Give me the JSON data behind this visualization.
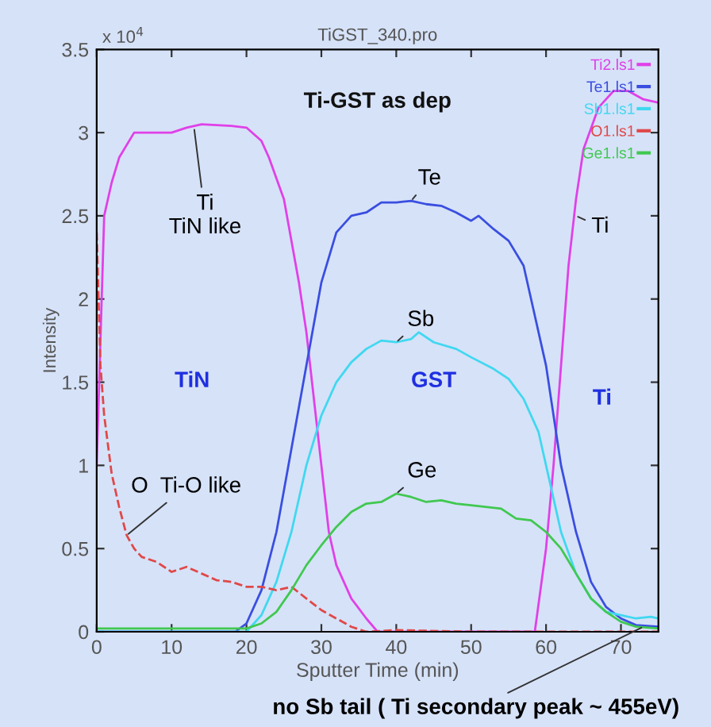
{
  "chart_data": {
    "type": "line",
    "title": "TiGST_340.pro",
    "subtitle": "Ti-GST as dep",
    "xlabel": "Sputter Time (min)",
    "ylabel": "Intensity",
    "annotations": [
      "x 10$^{4}$",
      {
        "text": "Ti\nTiN like",
        "x": 13,
        "y": 3.03
      },
      {
        "text": "Te",
        "x": 42,
        "y": 2.59
      },
      {
        "text": "Sb",
        "x": 40,
        "y": 1.74
      },
      {
        "text": "Ge",
        "x": 40,
        "y": 0.83
      },
      {
        "text": "Ti",
        "x": 64,
        "y": 2.5
      },
      {
        "text": "O  Ti-O like",
        "x": 4,
        "y": 0.58
      },
      {
        "text": "no Sb tail ( Ti secondary peak ~ 455eV)",
        "x": 73,
        "y": 0.03
      },
      "TiN",
      "GST",
      "Ti"
    ],
    "series": [
      {
        "name": "Ti2.ls1",
        "color": "#e040e8",
        "x": [
          0,
          1,
          2,
          3,
          5,
          10,
          12,
          14,
          18,
          20,
          22,
          23,
          25,
          27,
          28,
          29,
          30,
          31,
          32,
          34,
          36,
          37.5,
          45,
          58.5,
          60,
          61,
          62,
          63,
          64,
          65,
          67,
          69,
          71,
          73,
          75
        ],
        "values": [
          1.0,
          2.5,
          2.7,
          2.85,
          3.0,
          3.0,
          3.03,
          3.05,
          3.04,
          3.03,
          2.95,
          2.85,
          2.6,
          2.1,
          1.8,
          1.4,
          1.0,
          0.6,
          0.4,
          0.2,
          0.08,
          0,
          0,
          0,
          0.5,
          1.0,
          1.6,
          2.2,
          2.6,
          2.9,
          3.15,
          3.25,
          3.25,
          3.2,
          3.18
        ]
      },
      {
        "name": "Te1.ls1",
        "color": "#3a4ee0",
        "x": [
          0,
          10,
          18.5,
          20,
          22,
          24,
          26,
          28,
          30,
          32,
          34,
          36,
          38,
          40,
          42,
          44,
          46,
          48,
          50,
          51,
          53,
          55,
          57,
          58,
          60,
          62,
          64,
          66,
          68,
          70,
          72,
          75
        ],
        "values": [
          0,
          0,
          0,
          0.05,
          0.25,
          0.6,
          1.1,
          1.6,
          2.1,
          2.4,
          2.5,
          2.52,
          2.58,
          2.58,
          2.59,
          2.57,
          2.56,
          2.52,
          2.47,
          2.5,
          2.42,
          2.35,
          2.2,
          2.0,
          1.6,
          1.0,
          0.6,
          0.3,
          0.15,
          0.08,
          0.04,
          0.03
        ]
      },
      {
        "name": "Sb1.ls1",
        "color": "#40d8f0",
        "x": [
          0,
          10,
          20,
          22,
          24,
          26,
          28,
          30,
          32,
          34,
          36,
          38,
          40,
          42,
          43,
          45,
          48,
          50,
          53,
          55,
          57,
          59,
          60,
          62,
          64,
          66,
          68,
          70,
          72,
          74,
          75
        ],
        "values": [
          0,
          0,
          0,
          0.1,
          0.3,
          0.6,
          1.0,
          1.3,
          1.5,
          1.62,
          1.7,
          1.75,
          1.74,
          1.76,
          1.8,
          1.74,
          1.7,
          1.65,
          1.58,
          1.52,
          1.4,
          1.2,
          1.0,
          0.6,
          0.35,
          0.2,
          0.12,
          0.1,
          0.08,
          0.09,
          0.08
        ]
      },
      {
        "name": "O1.ls1",
        "color": "#e04848",
        "line_style": "dashed",
        "x": [
          0,
          0.5,
          1,
          2,
          3,
          4,
          5,
          6,
          8,
          10,
          12,
          14,
          16,
          18,
          20,
          22,
          24,
          26,
          28,
          30,
          32,
          34,
          36,
          40,
          50,
          60,
          75
        ],
        "values": [
          2.4,
          1.6,
          1.3,
          0.95,
          0.75,
          0.58,
          0.5,
          0.45,
          0.42,
          0.36,
          0.39,
          0.35,
          0.31,
          0.3,
          0.27,
          0.27,
          0.25,
          0.27,
          0.2,
          0.13,
          0.08,
          0.03,
          0,
          0.01,
          0,
          0,
          0
        ]
      },
      {
        "name": "Ge1.ls1",
        "color": "#40c850",
        "x": [
          0,
          20,
          22,
          24,
          26,
          28,
          30,
          32,
          34,
          36,
          38,
          40,
          42,
          44,
          46,
          48,
          50,
          54,
          56,
          58,
          60,
          62,
          64,
          66,
          68,
          70,
          72,
          75
        ],
        "values": [
          0.02,
          0.02,
          0.05,
          0.12,
          0.25,
          0.4,
          0.52,
          0.63,
          0.72,
          0.77,
          0.78,
          0.83,
          0.81,
          0.78,
          0.79,
          0.77,
          0.76,
          0.74,
          0.68,
          0.67,
          0.6,
          0.5,
          0.35,
          0.2,
          0.12,
          0.06,
          0.03,
          0.02
        ]
      }
    ],
    "xlim": [
      0,
      75
    ],
    "xticks": [
      0,
      10,
      20,
      30,
      40,
      50,
      60,
      70
    ],
    "ylim": [
      0,
      3.5
    ],
    "yticks": [
      0,
      0.5,
      1,
      1.5,
      2,
      2.5,
      3,
      3.5
    ],
    "grid": false,
    "legend": "top right",
    "line_style": "solid",
    "marker": "none"
  }
}
